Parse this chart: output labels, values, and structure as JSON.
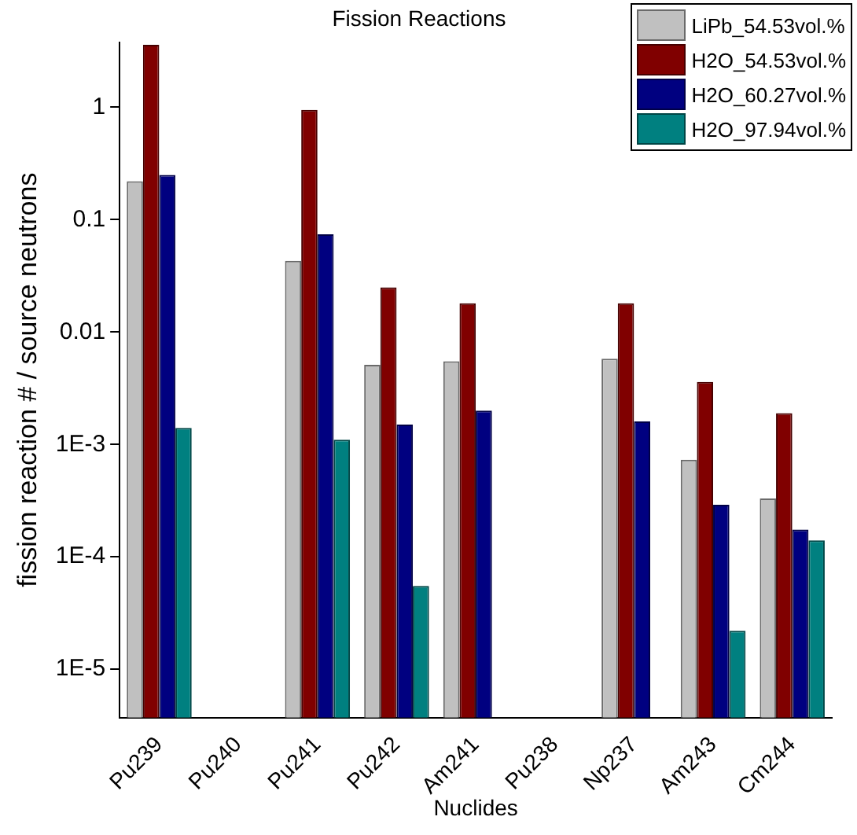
{
  "chart_data": {
    "type": "bar",
    "title": "Fission Reactions",
    "xlabel": "Nuclides",
    "ylabel": "fission reaction # / source neutrons",
    "categories": [
      "Pu239",
      "Pu240",
      "Pu241",
      "Pu242",
      "Am241",
      "Pu238",
      "Np237",
      "Am243",
      "Cm244"
    ],
    "series": [
      {
        "name": "LiPb_54.53vol.%",
        "color": "#c0c0c0",
        "values": [
          0.22,
          null,
          0.043,
          0.0051,
          0.0055,
          null,
          0.0058,
          0.00073,
          0.00033
        ]
      },
      {
        "name": "H2O_54.53vol.%",
        "color": "#800000",
        "values": [
          3.6,
          null,
          0.95,
          0.025,
          0.018,
          null,
          0.018,
          0.0036,
          0.0019
        ]
      },
      {
        "name": "H2O_60.27vol.%",
        "color": "#000080",
        "values": [
          0.25,
          null,
          0.074,
          0.0015,
          0.002,
          null,
          0.0016,
          0.00029,
          0.000175
        ]
      },
      {
        "name": "H2O_97.94vol.%",
        "color": "#008080",
        "values": [
          0.0014,
          null,
          0.0011,
          5.5e-05,
          null,
          null,
          null,
          2.2e-05,
          0.00014
        ]
      }
    ],
    "log": "y",
    "ylim": [
      3.7e-06,
      3.8
    ],
    "yticks": [
      {
        "value": 1e-05,
        "label": "1E-5"
      },
      {
        "value": 0.0001,
        "label": "1E-4"
      },
      {
        "value": 0.001,
        "label": "1E-3"
      },
      0.01,
      0.1,
      1
    ],
    "grid": false,
    "legend": "top right"
  }
}
